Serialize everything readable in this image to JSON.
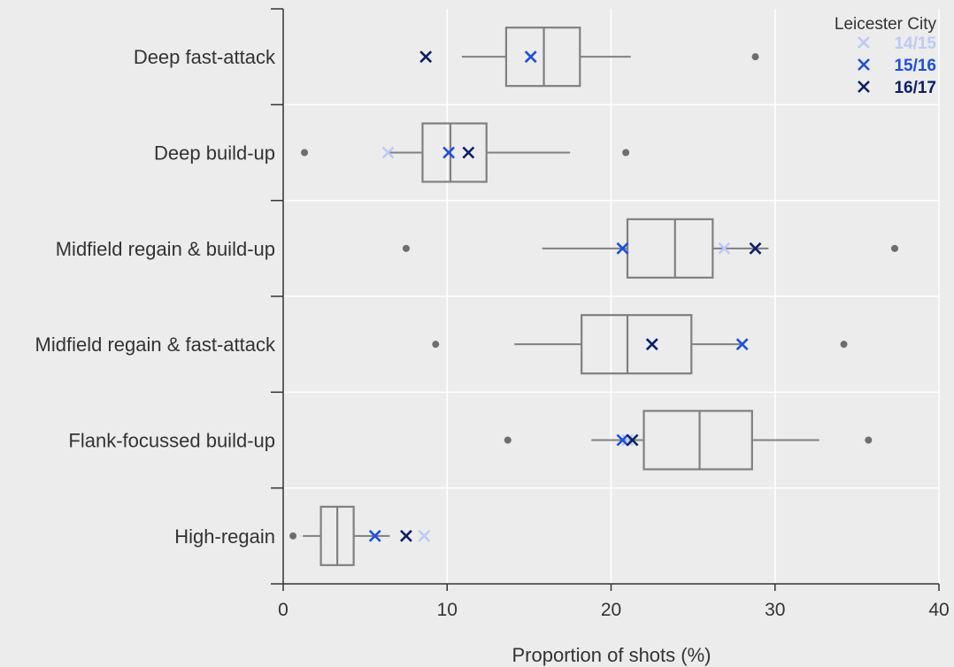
{
  "chart_data": {
    "type": "box",
    "orientation": "horizontal",
    "xlabel": "Proportion of shots (%)",
    "xlim": [
      0,
      40
    ],
    "xticks": [
      0,
      10,
      20,
      30,
      40
    ],
    "grid": true,
    "legend": {
      "title": "Leicester City",
      "placement": "top-right",
      "entries": [
        {
          "name": "14/15",
          "color": "#bccbf5"
        },
        {
          "name": "15/16",
          "color": "#1f4fe0"
        },
        {
          "name": "16/17",
          "color": "#0c1f66"
        }
      ]
    },
    "box_color": "#808080",
    "outlier_color": "#6e6e6e",
    "categories": [
      {
        "label": "Deep fast-attack",
        "whisker_low": 10.9,
        "q1": 13.6,
        "median": 15.9,
        "q3": 18.1,
        "whisker_high": 21.2,
        "outliers": [
          28.8
        ],
        "leicester": {
          "14/15": 15.1,
          "15/16": 15.1,
          "16/17": 8.7
        }
      },
      {
        "label": "Deep build-up",
        "whisker_low": 6.4,
        "q1": 8.5,
        "median": 10.2,
        "q3": 12.4,
        "whisker_high": 17.5,
        "outliers": [
          1.3,
          20.9
        ],
        "leicester": {
          "14/15": 6.4,
          "15/16": 10.1,
          "16/17": 11.3
        }
      },
      {
        "label": "Midfield regain & build-up",
        "whisker_low": 15.8,
        "q1": 21.0,
        "median": 23.9,
        "q3": 26.2,
        "whisker_high": 29.6,
        "outliers": [
          7.5,
          37.3
        ],
        "leicester": {
          "14/15": 26.9,
          "15/16": 20.7,
          "16/17": 28.8
        }
      },
      {
        "label": "Midfield regain & fast-attack",
        "whisker_low": 14.1,
        "q1": 18.2,
        "median": 21.0,
        "q3": 24.9,
        "whisker_high": 28.0,
        "outliers": [
          9.3,
          34.2
        ],
        "leicester": {
          "14/15": 22.5,
          "15/16": 28.0,
          "16/17": 22.5
        }
      },
      {
        "label": "Flank-focussed build-up",
        "whisker_low": 18.8,
        "q1": 22.0,
        "median": 25.4,
        "q3": 28.6,
        "whisker_high": 32.7,
        "outliers": [
          13.7,
          35.7
        ],
        "leicester": {
          "14/15": 21.0,
          "15/16": 20.7,
          "16/17": 21.3
        }
      },
      {
        "label": "High-regain",
        "whisker_low": 1.2,
        "q1": 2.3,
        "median": 3.3,
        "q3": 4.3,
        "whisker_high": 6.5,
        "outliers": [
          0.6
        ],
        "leicester": {
          "14/15": 8.6,
          "15/16": 5.6,
          "16/17": 7.5
        }
      }
    ]
  }
}
